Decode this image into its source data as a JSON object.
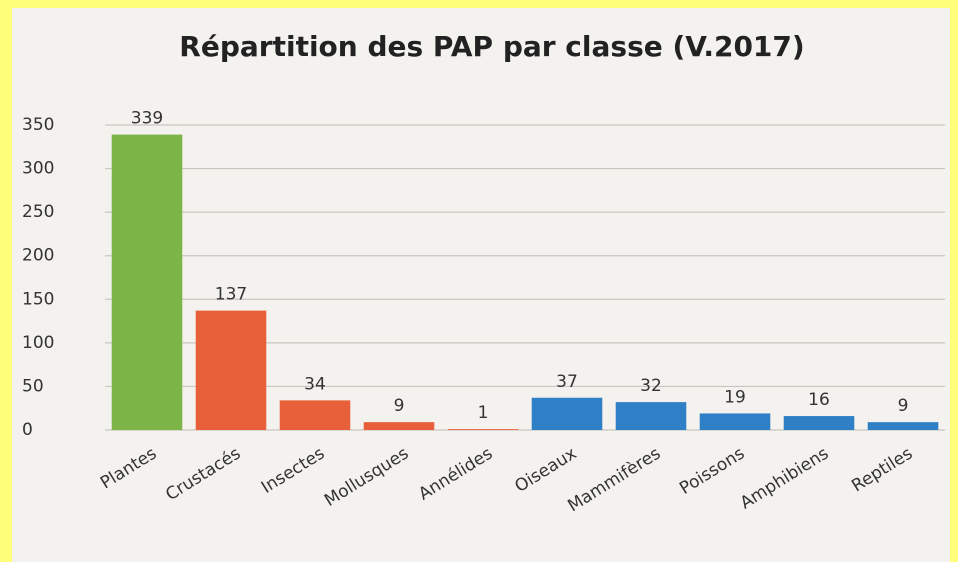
{
  "chart_data": {
    "type": "bar",
    "title": "Répartition des PAP par classe (V.2017)",
    "categories": [
      "Plantes",
      "Crustacés",
      "Insectes",
      "Mollusques",
      "Annélides",
      "Oiseaux",
      "Mammifères",
      "Poissons",
      "Amphibiens",
      "Reptiles"
    ],
    "values": [
      339,
      137,
      34,
      9,
      1,
      37,
      32,
      19,
      16,
      9
    ],
    "colors": [
      "#7db548",
      "#e8603a",
      "#e8603a",
      "#e8603a",
      "#e8603a",
      "#2f7fc6",
      "#2f7fc6",
      "#2f7fc6",
      "#2f7fc6",
      "#2f7fc6"
    ],
    "ylim": [
      0,
      350
    ],
    "yticks": [
      0,
      50,
      100,
      150,
      200,
      250,
      300,
      350
    ],
    "grid": true
  }
}
